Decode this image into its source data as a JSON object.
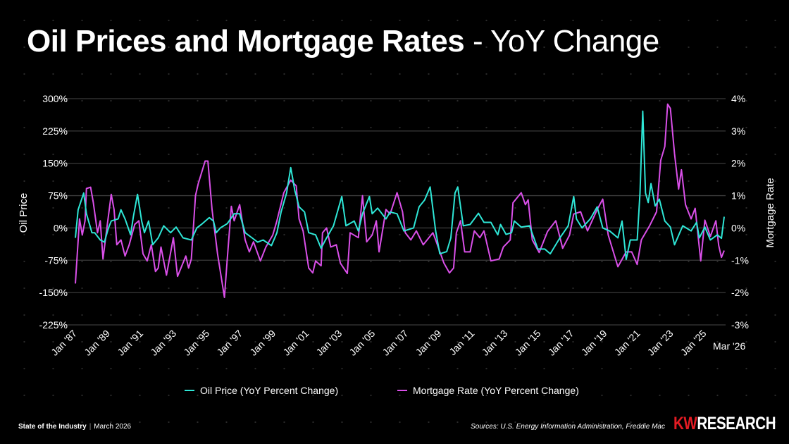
{
  "header": {
    "title_bold": "Oil Prices and Mortgage Rates",
    "title_rest": " - YoY Change"
  },
  "footer": {
    "left_bold": "State of the Industry",
    "separator": "|",
    "date": "March 2026",
    "sources": "Sources: U.S. Energy Information Administration, Freddie Mac",
    "brand_kw": "KW",
    "brand_rest": "RESEARCH"
  },
  "chart_data": {
    "type": "line",
    "title": "Oil Prices and Mortgage Rates - YoY Change",
    "ylabel": "Oil Price",
    "y2label": "Mortgage Rate",
    "ylim": [
      -225,
      300
    ],
    "y2lim": [
      -3,
      4
    ],
    "yticks": [
      "300%",
      "225%",
      "150%",
      "75%",
      "0%",
      "-75%",
      "-150%",
      "-225%"
    ],
    "yticks_values": [
      300,
      225,
      150,
      75,
      0,
      -75,
      -150,
      -225
    ],
    "y2ticks": [
      "4%",
      "3%",
      "2%",
      "1%",
      "0%",
      "-1%",
      "-2%",
      "-3%"
    ],
    "y2ticks_values": [
      4,
      3,
      2,
      1,
      0,
      -1,
      -2,
      -3
    ],
    "xlim": [
      "1987-01",
      "2026-03"
    ],
    "xticks": [
      {
        "date": "1987-01",
        "label": "Jan '87"
      },
      {
        "date": "1989-01",
        "label": "Jan '89"
      },
      {
        "date": "1991-01",
        "label": "Jan '91"
      },
      {
        "date": "1993-01",
        "label": "Jan '93"
      },
      {
        "date": "1995-01",
        "label": "Jan '95"
      },
      {
        "date": "1997-01",
        "label": "Jan '97"
      },
      {
        "date": "1999-01",
        "label": "Jan '99"
      },
      {
        "date": "2001-01",
        "label": "Jan '01"
      },
      {
        "date": "2003-01",
        "label": "Jan '03"
      },
      {
        "date": "2005-01",
        "label": "Jan '05"
      },
      {
        "date": "2007-01",
        "label": "Jan '07"
      },
      {
        "date": "2009-01",
        "label": "Jan '09"
      },
      {
        "date": "2011-01",
        "label": "Jan '11"
      },
      {
        "date": "2013-01",
        "label": "Jan '13"
      },
      {
        "date": "2015-01",
        "label": "Jan '15"
      },
      {
        "date": "2017-01",
        "label": "Jan '17"
      },
      {
        "date": "2019-01",
        "label": "Jan '19"
      },
      {
        "date": "2021-01",
        "label": "Jan '21"
      },
      {
        "date": "2023-01",
        "label": "Jan '23"
      },
      {
        "date": "2025-01",
        "label": "Jan '25"
      },
      {
        "date": "2026-03",
        "label": "Mar '26"
      }
    ],
    "grid": true,
    "legend_placement": "bottom",
    "series": [
      {
        "name": "Oil Price (YoY Percent Change)",
        "axis": "left",
        "color": "#2ee6d6",
        "points": [
          [
            "1987-01",
            -23
          ],
          [
            "1987-03",
            42
          ],
          [
            "1987-07",
            81
          ],
          [
            "1987-09",
            33
          ],
          [
            "1988-01",
            -11
          ],
          [
            "1988-03",
            -11
          ],
          [
            "1988-07",
            -28
          ],
          [
            "1988-10",
            -33
          ],
          [
            "1989-01",
            0
          ],
          [
            "1989-03",
            16
          ],
          [
            "1989-08",
            21
          ],
          [
            "1989-10",
            42
          ],
          [
            "1990-01",
            21
          ],
          [
            "1990-05",
            -16
          ],
          [
            "1990-07",
            26
          ],
          [
            "1990-10",
            78
          ],
          [
            "1991-01",
            16
          ],
          [
            "1991-03",
            -11
          ],
          [
            "1991-06",
            16
          ],
          [
            "1991-09",
            -39
          ],
          [
            "1992-01",
            -23
          ],
          [
            "1992-05",
            5
          ],
          [
            "1992-10",
            -11
          ],
          [
            "1993-02",
            2
          ],
          [
            "1993-07",
            -23
          ],
          [
            "1994-01",
            -28
          ],
          [
            "1994-05",
            0
          ],
          [
            "1994-09",
            10
          ],
          [
            "1995-02",
            24
          ],
          [
            "1995-05",
            16
          ],
          [
            "1995-07",
            -11
          ],
          [
            "1995-10",
            0
          ],
          [
            "1996-03",
            10
          ],
          [
            "1996-08",
            33
          ],
          [
            "1996-12",
            33
          ],
          [
            "1997-04",
            -11
          ],
          [
            "1997-09",
            -23
          ],
          [
            "1998-01",
            -33
          ],
          [
            "1998-05",
            -28
          ],
          [
            "1998-11",
            -41
          ],
          [
            "1999-03",
            -11
          ],
          [
            "1999-06",
            37
          ],
          [
            "1999-10",
            81
          ],
          [
            "2000-01",
            140
          ],
          [
            "2000-04",
            86
          ],
          [
            "2000-05",
            75
          ],
          [
            "2000-07",
            49
          ],
          [
            "2000-11",
            37
          ],
          [
            "2001-02",
            -11
          ],
          [
            "2001-07",
            -16
          ],
          [
            "2001-11",
            -47
          ],
          [
            "2002-03",
            -23
          ],
          [
            "2002-08",
            5
          ],
          [
            "2003-02",
            73
          ],
          [
            "2003-05",
            5
          ],
          [
            "2003-11",
            16
          ],
          [
            "2004-02",
            -7
          ],
          [
            "2004-05",
            33
          ],
          [
            "2004-10",
            73
          ],
          [
            "2004-12",
            33
          ],
          [
            "2005-04",
            46
          ],
          [
            "2005-10",
            21
          ],
          [
            "2006-01",
            37
          ],
          [
            "2006-06",
            33
          ],
          [
            "2006-11",
            -7
          ],
          [
            "2007-06",
            0
          ],
          [
            "2007-10",
            49
          ],
          [
            "2008-02",
            65
          ],
          [
            "2008-06",
            95
          ],
          [
            "2008-10",
            -7
          ],
          [
            "2009-01",
            -60
          ],
          [
            "2009-06",
            -55
          ],
          [
            "2009-09",
            -23
          ],
          [
            "2009-12",
            81
          ],
          [
            "2010-02",
            95
          ],
          [
            "2010-06",
            5
          ],
          [
            "2010-11",
            8
          ],
          [
            "2011-05",
            34
          ],
          [
            "2011-09",
            13
          ],
          [
            "2012-02",
            13
          ],
          [
            "2012-07",
            -16
          ],
          [
            "2012-09",
            8
          ],
          [
            "2013-01",
            -15
          ],
          [
            "2013-05",
            -11
          ],
          [
            "2013-07",
            16
          ],
          [
            "2013-12",
            2
          ],
          [
            "2014-06",
            5
          ],
          [
            "2014-12",
            -49
          ],
          [
            "2015-05",
            -49
          ],
          [
            "2015-09",
            -60
          ],
          [
            "2016-04",
            -23
          ],
          [
            "2016-10",
            5
          ],
          [
            "2017-02",
            73
          ],
          [
            "2017-04",
            21
          ],
          [
            "2017-08",
            0
          ],
          [
            "2018-02",
            21
          ],
          [
            "2018-07",
            49
          ],
          [
            "2018-11",
            0
          ],
          [
            "2019-04",
            -7
          ],
          [
            "2019-10",
            -23
          ],
          [
            "2020-01",
            16
          ],
          [
            "2020-04",
            -73
          ],
          [
            "2020-07",
            -28
          ],
          [
            "2020-12",
            -28
          ],
          [
            "2021-02",
            81
          ],
          [
            "2021-04",
            271
          ],
          [
            "2021-06",
            81
          ],
          [
            "2021-08",
            59
          ],
          [
            "2021-10",
            103
          ],
          [
            "2022-01",
            51
          ],
          [
            "2022-04",
            67
          ],
          [
            "2022-08",
            16
          ],
          [
            "2022-12",
            2
          ],
          [
            "2023-03",
            -39
          ],
          [
            "2023-09",
            5
          ],
          [
            "2024-03",
            -7
          ],
          [
            "2024-07",
            13
          ],
          [
            "2024-09",
            -23
          ],
          [
            "2025-01",
            2
          ],
          [
            "2025-05",
            -28
          ],
          [
            "2025-10",
            -16
          ],
          [
            "2026-01",
            -24
          ],
          [
            "2026-03",
            26
          ]
        ]
      },
      {
        "name": "Mortgage Rate (YoY Percent Change)",
        "axis": "right",
        "color": "#d94fe8",
        "points": [
          [
            "1987-01",
            -1.72
          ],
          [
            "1987-04",
            0.28
          ],
          [
            "1987-06",
            -0.22
          ],
          [
            "1987-08",
            0.22
          ],
          [
            "1987-09",
            1.22
          ],
          [
            "1987-12",
            1.26
          ],
          [
            "1988-02",
            0.78
          ],
          [
            "1988-05",
            -0.15
          ],
          [
            "1988-07",
            0.22
          ],
          [
            "1988-09",
            -0.96
          ],
          [
            "1988-12",
            0.07
          ],
          [
            "1989-03",
            1.04
          ],
          [
            "1989-05",
            0.57
          ],
          [
            "1989-07",
            -0.52
          ],
          [
            "1989-10",
            -0.37
          ],
          [
            "1990-01",
            -0.87
          ],
          [
            "1990-04",
            -0.52
          ],
          [
            "1990-08",
            0.11
          ],
          [
            "1990-11",
            0.22
          ],
          [
            "1991-02",
            -0.8
          ],
          [
            "1991-05",
            -1.02
          ],
          [
            "1991-08",
            -0.52
          ],
          [
            "1991-11",
            -1.35
          ],
          [
            "1992-01",
            -1.24
          ],
          [
            "1992-03",
            -0.59
          ],
          [
            "1992-07",
            -1.46
          ],
          [
            "1992-12",
            -0.3
          ],
          [
            "1993-03",
            -1.5
          ],
          [
            "1993-09",
            -0.87
          ],
          [
            "1993-11",
            -1.24
          ],
          [
            "1994-01",
            -0.96
          ],
          [
            "1994-04",
            1.0
          ],
          [
            "1994-06",
            1.37
          ],
          [
            "1994-11",
            2.07
          ],
          [
            "1995-01",
            2.07
          ],
          [
            "1995-04",
            0.57
          ],
          [
            "1995-08",
            -0.8
          ],
          [
            "1996-01",
            -2.15
          ],
          [
            "1996-03",
            -0.96
          ],
          [
            "1996-06",
            0.67
          ],
          [
            "1996-08",
            0.22
          ],
          [
            "1996-12",
            0.72
          ],
          [
            "1997-04",
            -0.37
          ],
          [
            "1997-07",
            -0.74
          ],
          [
            "1997-10",
            -0.43
          ],
          [
            "1998-03",
            -1.02
          ],
          [
            "1998-07",
            -0.59
          ],
          [
            "1998-12",
            -0.22
          ],
          [
            "1999-03",
            0.22
          ],
          [
            "1999-08",
            1.09
          ],
          [
            "2000-01",
            1.48
          ],
          [
            "2000-05",
            1.3
          ],
          [
            "2000-07",
            0.28
          ],
          [
            "2000-10",
            -0.1
          ],
          [
            "2001-02",
            -1.24
          ],
          [
            "2001-05",
            -1.39
          ],
          [
            "2001-07",
            -1.02
          ],
          [
            "2001-11",
            -1.17
          ],
          [
            "2001-12",
            -0.15
          ],
          [
            "2002-03",
            0
          ],
          [
            "2002-06",
            -0.59
          ],
          [
            "2002-10",
            -0.52
          ],
          [
            "2003-01",
            -1.09
          ],
          [
            "2003-06",
            -1.41
          ],
          [
            "2003-08",
            -0.15
          ],
          [
            "2004-02",
            -0.3
          ],
          [
            "2004-05",
            1.0
          ],
          [
            "2004-08",
            -0.43
          ],
          [
            "2004-12",
            -0.22
          ],
          [
            "2005-03",
            0.22
          ],
          [
            "2005-05",
            -0.74
          ],
          [
            "2005-10",
            0.57
          ],
          [
            "2006-01",
            0.43
          ],
          [
            "2006-06",
            1.09
          ],
          [
            "2006-10",
            0.5
          ],
          [
            "2006-12",
            -0.15
          ],
          [
            "2007-04",
            -0.37
          ],
          [
            "2007-08",
            -0.09
          ],
          [
            "2008-01",
            -0.52
          ],
          [
            "2008-08",
            -0.15
          ],
          [
            "2008-10",
            -0.37
          ],
          [
            "2009-04",
            -1.09
          ],
          [
            "2009-08",
            -1.39
          ],
          [
            "2009-11",
            -1.24
          ],
          [
            "2010-01",
            -0.15
          ],
          [
            "2010-04",
            0.22
          ],
          [
            "2010-07",
            -0.74
          ],
          [
            "2010-11",
            -0.74
          ],
          [
            "2011-02",
            -0.09
          ],
          [
            "2011-06",
            -0.3
          ],
          [
            "2011-09",
            -0.09
          ],
          [
            "2012-02",
            -1.02
          ],
          [
            "2012-08",
            -0.96
          ],
          [
            "2012-11",
            -0.59
          ],
          [
            "2013-04",
            -0.37
          ],
          [
            "2013-06",
            0.78
          ],
          [
            "2013-12",
            1.09
          ],
          [
            "2014-03",
            0.72
          ],
          [
            "2014-05",
            0.87
          ],
          [
            "2014-08",
            -0.37
          ],
          [
            "2015-01",
            -0.76
          ],
          [
            "2015-07",
            -0.11
          ],
          [
            "2016-01",
            0.22
          ],
          [
            "2016-06",
            -0.63
          ],
          [
            "2016-11",
            -0.22
          ],
          [
            "2017-02",
            0.43
          ],
          [
            "2017-07",
            0.5
          ],
          [
            "2017-12",
            -0.09
          ],
          [
            "2018-07",
            0.57
          ],
          [
            "2018-11",
            0.89
          ],
          [
            "2019-03",
            -0.22
          ],
          [
            "2019-10",
            -1.2
          ],
          [
            "2020-04",
            -0.74
          ],
          [
            "2020-08",
            -0.74
          ],
          [
            "2020-12",
            -1.13
          ],
          [
            "2021-03",
            -0.37
          ],
          [
            "2021-09",
            0.07
          ],
          [
            "2022-02",
            0.5
          ],
          [
            "2022-05",
            2.09
          ],
          [
            "2022-08",
            2.52
          ],
          [
            "2022-10",
            3.83
          ],
          [
            "2022-12",
            3.7
          ],
          [
            "2023-03",
            2.3
          ],
          [
            "2023-06",
            1.2
          ],
          [
            "2023-08",
            1.8
          ],
          [
            "2023-11",
            0.72
          ],
          [
            "2024-03",
            0.28
          ],
          [
            "2024-06",
            0.61
          ],
          [
            "2024-10",
            -1.02
          ],
          [
            "2025-01",
            0.24
          ],
          [
            "2025-05",
            -0.26
          ],
          [
            "2025-09",
            0.22
          ],
          [
            "2025-11",
            -0.54
          ],
          [
            "2026-01",
            -0.91
          ],
          [
            "2026-03",
            -0.7
          ]
        ]
      }
    ]
  }
}
